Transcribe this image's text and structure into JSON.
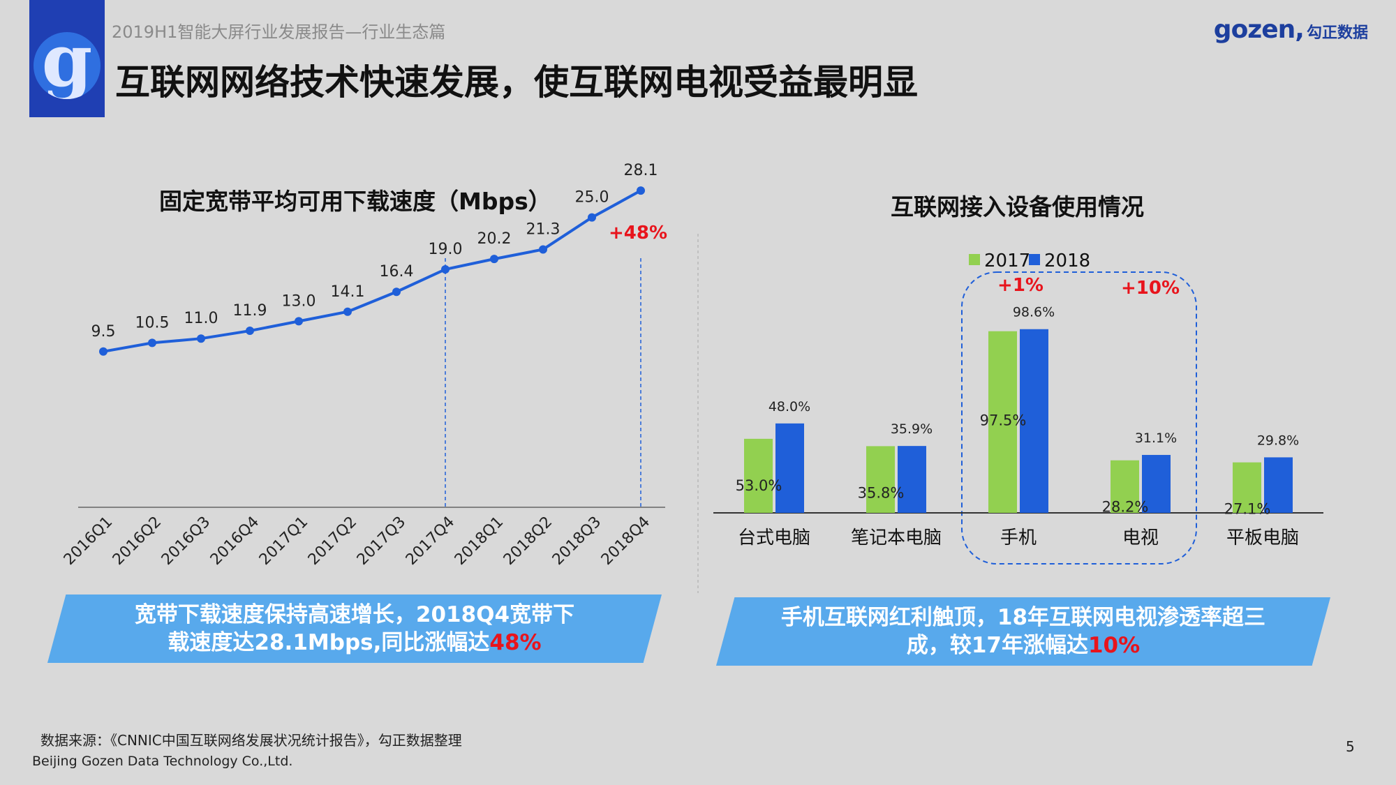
{
  "header": {
    "subtitle": "2019H1智能大屏行业发展报告—行业生态篇",
    "title": "互联网网络技术快速发展，使互联网电视受益最明显",
    "brand_latin": "gozen,",
    "brand_cn": "勾正数据",
    "logo_letter": "g"
  },
  "left_chart": {
    "title": "固定宽带平均可用下载速度（Mbps）",
    "growth_label": "+48%",
    "line_color": "#1f5fd9"
  },
  "right_chart": {
    "title": "互联网接入设备使用情况",
    "growth_mobile": "+1%",
    "growth_tv": "+10%",
    "legend": [
      {
        "label": "2017",
        "color": "#92d050"
      },
      {
        "label": "2018",
        "color": "#1f5fd9"
      }
    ]
  },
  "chart_data": [
    {
      "type": "line",
      "title": "固定宽带平均可用下载速度（Mbps）",
      "categories": [
        "2016Q1",
        "2016Q2",
        "2016Q3",
        "2016Q4",
        "2017Q1",
        "2017Q2",
        "2017Q3",
        "2017Q4",
        "2018Q1",
        "2018Q2",
        "2018Q3",
        "2018Q4"
      ],
      "values": [
        9.5,
        10.5,
        11.0,
        11.9,
        13.0,
        14.1,
        16.4,
        19.0,
        20.2,
        21.3,
        25.0,
        28.1
      ],
      "value_labels": [
        "9.5",
        "10.5",
        "11.0",
        "11.9",
        "13.0",
        "14.1",
        "16.4",
        "19.0",
        "20.2",
        "21.3",
        "25.0",
        "28.1"
      ],
      "ylim": [
        0,
        30
      ],
      "grid": false,
      "annotations": [
        "+48%"
      ]
    },
    {
      "type": "bar",
      "title": "互联网接入设备使用情况",
      "categories": [
        "台式电脑",
        "笔记本电脑",
        "手机",
        "电视",
        "平板电脑"
      ],
      "series": [
        {
          "name": "2017",
          "values": [
            53.0,
            35.8,
            97.5,
            28.2,
            27.1
          ],
          "labels": [
            "53.0%",
            "35.8%",
            "97.5%",
            "28.2%",
            "27.1%"
          ]
        },
        {
          "name": "2018",
          "values": [
            48.0,
            35.9,
            98.6,
            31.1,
            29.8
          ],
          "labels": [
            "48.0%",
            "35.9%",
            "98.6%",
            "31.1%",
            "29.8%"
          ]
        }
      ],
      "ylim": [
        0,
        100
      ],
      "legend": "top",
      "annotations": [
        "+1%",
        "+10%"
      ]
    }
  ],
  "banners": {
    "left_pre": "宽带下载速度保持高速增长，2018Q4宽带下载速度达28.1Mbps,同比涨幅达",
    "left_hl": "48%",
    "right_pre": "手机互联网红利触顶，18年互联网电视渗透率超三成，较17年涨幅达",
    "right_hl": "10%"
  },
  "footer": {
    "source": "数据来源：《CNNIC中国互联网络发展状况统计报告》，勾正数据整理",
    "company": "Beijing Gozen Data Technology Co.,Ltd.",
    "page": "5"
  }
}
